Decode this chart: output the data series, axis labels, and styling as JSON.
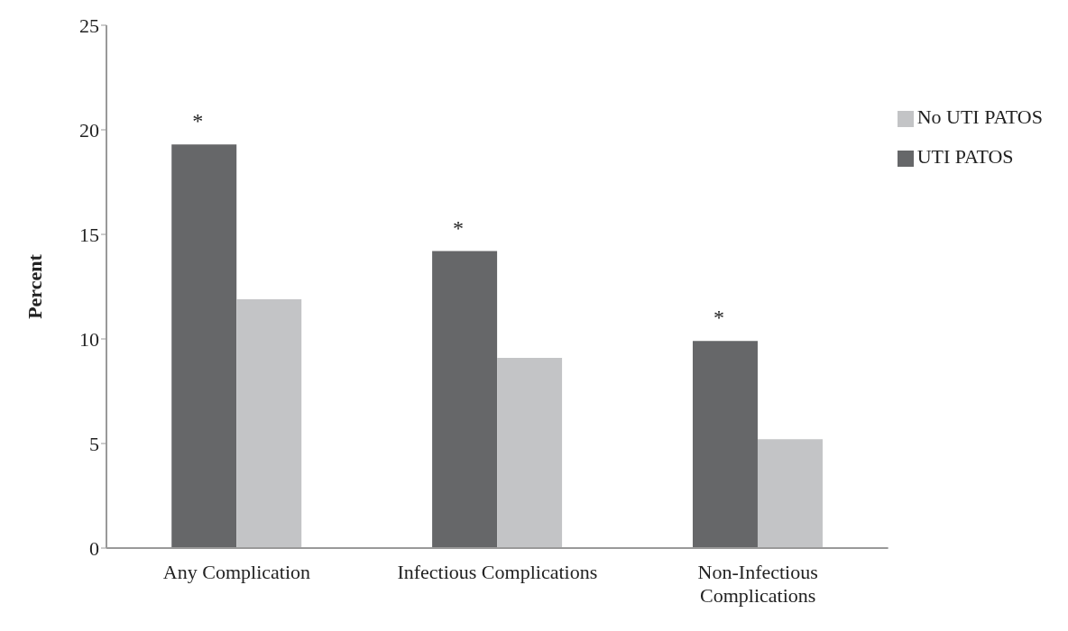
{
  "chart_data": {
    "type": "bar",
    "ylabel": "Percent",
    "categories": [
      "Any Complication",
      "Infectious Complications",
      "Non-Infectious Complications"
    ],
    "series": [
      {
        "name": "UTI PATOS",
        "color": "#666769",
        "values": [
          19.3,
          14.2,
          9.9
        ]
      },
      {
        "name": "No UTI PATOS",
        "color": "#c3c4c6",
        "values": [
          11.9,
          9.1,
          5.2
        ]
      }
    ],
    "ylim": [
      0,
      25
    ],
    "yticks": [
      0,
      5,
      10,
      15,
      20,
      25
    ],
    "grid": false,
    "legend": "top right",
    "annotations": [
      {
        "text": "*",
        "x": "Any Complication",
        "y": 19.3
      },
      {
        "text": "*",
        "x": "Infectious Complications",
        "y": 14.2
      },
      {
        "text": "*",
        "x": "Non-Infectious Complications",
        "y": 9.9
      }
    ]
  }
}
